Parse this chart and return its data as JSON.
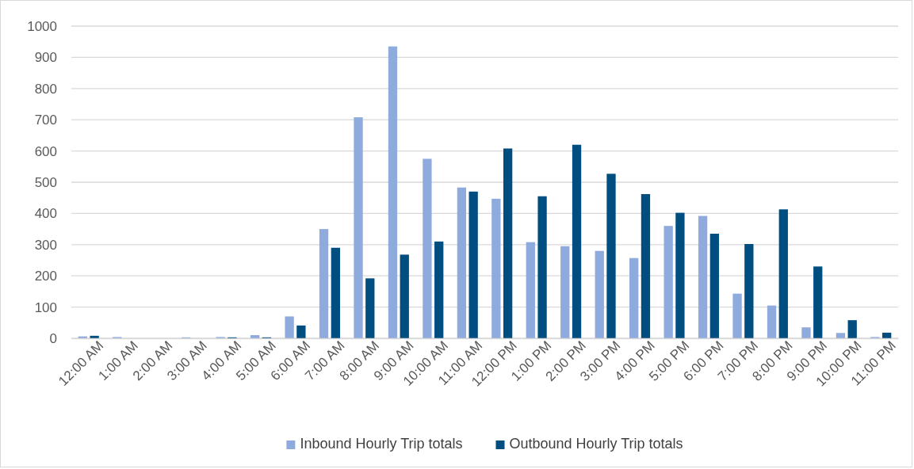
{
  "chart_data": {
    "type": "bar",
    "categories": [
      "12:00 AM",
      "1:00 AM",
      "2:00 AM",
      "3:00 AM",
      "4:00 AM",
      "5:00 AM",
      "6:00 AM",
      "7:00 AM",
      "8:00 AM",
      "9:00 AM",
      "10:00 AM",
      "11:00 AM",
      "12:00 PM",
      "1:00 PM",
      "2:00 PM",
      "3:00 PM",
      "4:00 PM",
      "5:00 PM",
      "6:00 PM",
      "7:00 PM",
      "8:00 PM",
      "9:00 PM",
      "10:00 PM",
      "11:00 PM"
    ],
    "series": [
      {
        "name": "Inbound Hourly Trip totals",
        "color": "#8faadc",
        "values": [
          6,
          4,
          0,
          3,
          4,
          10,
          70,
          350,
          708,
          935,
          575,
          483,
          447,
          308,
          295,
          280,
          257,
          360,
          392,
          143,
          105,
          35,
          17,
          4
        ]
      },
      {
        "name": "Outbound Hourly Trip totals",
        "color": "#004d80",
        "values": [
          8,
          0,
          0,
          0,
          3,
          3,
          41,
          290,
          192,
          268,
          310,
          470,
          608,
          455,
          620,
          527,
          462,
          402,
          335,
          302,
          413,
          230,
          58,
          18
        ]
      }
    ],
    "ylim": [
      0,
      1000
    ],
    "yticks": [
      0,
      100,
      200,
      300,
      400,
      500,
      600,
      700,
      800,
      900,
      1000
    ],
    "grid": "y",
    "legend": "bottom"
  }
}
